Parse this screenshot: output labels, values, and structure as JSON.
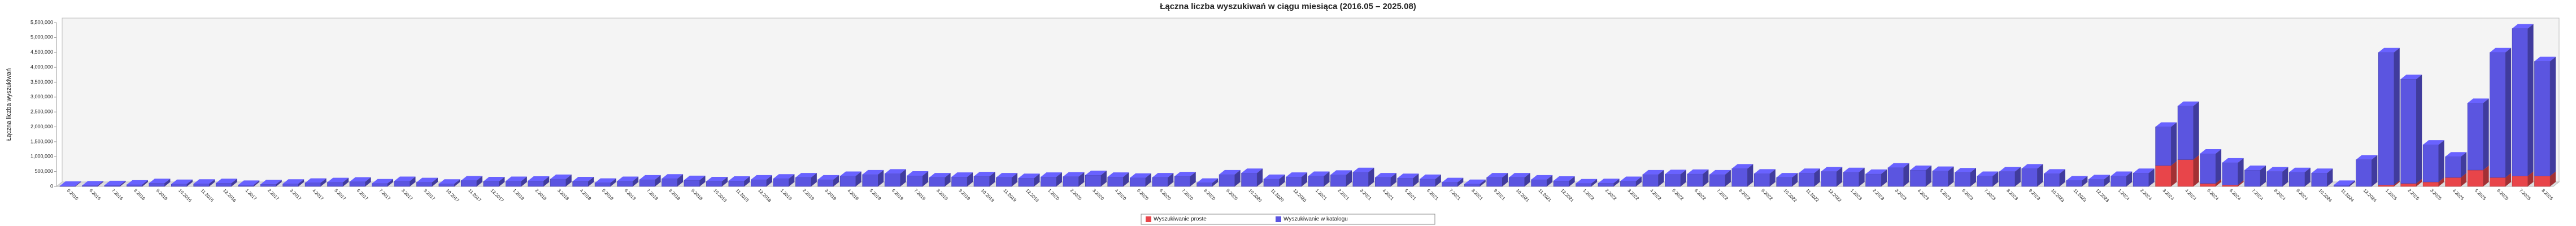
{
  "chart_data": {
    "type": "bar3d_stacked",
    "title": "Łączna liczba wyszukiwań w ciągu miesiąca (2016.05 – 2025.08)",
    "y_label": "Łączna liczba wyszukiwań",
    "categories": [
      "5.2016",
      "6.2016",
      "7.2016",
      "8.2016",
      "9.2016",
      "10.2016",
      "11.2016",
      "12.2016",
      "1.2017",
      "2.2017",
      "3.2017",
      "4.2017",
      "5.2017",
      "6.2017",
      "7.2017",
      "8.2017",
      "9.2017",
      "10.2017",
      "11.2017",
      "12.2017",
      "1.2018",
      "2.2018",
      "3.2018",
      "4.2018",
      "5.2018",
      "6.2018",
      "7.2018",
      "8.2018",
      "9.2018",
      "10.2018",
      "11.2018",
      "12.2018",
      "1.2019",
      "2.2019",
      "3.2019",
      "4.2019",
      "5.2019",
      "6.2019",
      "7.2019",
      "8.2019",
      "9.2019",
      "10.2019",
      "11.2019",
      "12.2019",
      "1.2020",
      "2.2020",
      "3.2020",
      "4.2020",
      "5.2020",
      "6.2020",
      "7.2020",
      "8.2020",
      "9.2020",
      "10.2020",
      "11.2020",
      "12.2020",
      "1.2021",
      "2.2021",
      "3.2021",
      "4.2021",
      "5.2021",
      "6.2021",
      "7.2021",
      "8.2021",
      "9.2021",
      "10.2021",
      "11.2021",
      "12.2021",
      "1.2022",
      "2.2022",
      "3.2022",
      "4.2022",
      "5.2022",
      "6.2022",
      "7.2022",
      "8.2022",
      "9.2022",
      "10.2022",
      "11.2022",
      "12.2022",
      "1.2023",
      "2.2023",
      "3.2023",
      "4.2023",
      "5.2023",
      "6.2023",
      "7.2023",
      "8.2023",
      "9.2023",
      "10.2023",
      "11.2023",
      "12.2023",
      "1.2024",
      "2.2024",
      "3.2024",
      "4.2024",
      "5.2024",
      "6.2024",
      "7.2024",
      "8.2024",
      "9.2024",
      "10.2024",
      "11.2024",
      "12.2024",
      "1.2025",
      "2.2025",
      "3.2025",
      "4.2025",
      "5.2025",
      "6.2025",
      "7.2025",
      "8.2025"
    ],
    "series": [
      {
        "name": "Wyszukiwanie proste",
        "color": "#e8454a",
        "values": [
          0,
          0,
          0,
          0,
          0,
          0,
          0,
          0,
          0,
          0,
          0,
          0,
          0,
          0,
          0,
          0,
          0,
          0,
          0,
          0,
          0,
          0,
          0,
          0,
          0,
          0,
          0,
          0,
          0,
          0,
          0,
          0,
          0,
          0,
          0,
          0,
          0,
          0,
          0,
          0,
          0,
          0,
          0,
          0,
          0,
          0,
          0,
          0,
          0,
          0,
          0,
          0,
          0,
          0,
          0,
          0,
          0,
          0,
          0,
          0,
          0,
          0,
          0,
          0,
          0,
          0,
          0,
          0,
          0,
          0,
          0,
          0,
          0,
          0,
          0,
          0,
          0,
          0,
          0,
          0,
          0,
          0,
          0,
          0,
          0,
          0,
          0,
          0,
          0,
          0,
          0,
          0,
          0,
          0,
          700000,
          900000,
          100000,
          50000,
          0,
          0,
          0,
          0,
          0,
          0,
          50000,
          100000,
          150000,
          300000,
          550000,
          300000,
          350000,
          350000
        ]
      },
      {
        "name": "Wyszukiwanie w katalogu",
        "color": "#5b55e0",
        "values": [
          20000,
          30000,
          40000,
          60000,
          110000,
          80000,
          90000,
          110000,
          50000,
          70000,
          90000,
          120000,
          140000,
          160000,
          100000,
          180000,
          140000,
          90000,
          200000,
          170000,
          180000,
          190000,
          250000,
          170000,
          120000,
          180000,
          230000,
          260000,
          210000,
          170000,
          190000,
          230000,
          260000,
          300000,
          230000,
          350000,
          400000,
          430000,
          360000,
          300000,
          320000,
          340000,
          300000,
          280000,
          320000,
          330000,
          380000,
          320000,
          290000,
          300000,
          340000,
          120000,
          400000,
          450000,
          250000,
          320000,
          350000,
          390000,
          480000,
          300000,
          280000,
          250000,
          140000,
          80000,
          300000,
          300000,
          230000,
          190000,
          100000,
          110000,
          180000,
          400000,
          410000,
          420000,
          400000,
          600000,
          430000,
          300000,
          450000,
          500000,
          480000,
          420000,
          630000,
          550000,
          520000,
          470000,
          350000,
          500000,
          600000,
          430000,
          200000,
          240000,
          350000,
          450000,
          1300000,
          1800000,
          1000000,
          750000,
          550000,
          500000,
          480000,
          450000,
          50000,
          900000,
          4450000,
          3500000,
          1250000,
          700000,
          2250000,
          4200000,
          4950000,
          3850000
        ]
      }
    ],
    "ylim": [
      0,
      5500000
    ],
    "yticks": [
      0,
      {
        "value": 500000,
        "label": "500,000"
      },
      {
        "value": 1000000,
        "label": "1,000,000"
      },
      {
        "value": 1500000,
        "label": "1,500,000"
      },
      {
        "value": 2000000,
        "label": "2,000,000"
      },
      {
        "value": 2500000,
        "label": "2,500,000"
      },
      {
        "value": 3000000,
        "label": "3,000,000"
      },
      {
        "value": 3500000,
        "label": "3,500,000"
      },
      {
        "value": 4000000,
        "label": "4,000,000"
      },
      {
        "value": 4500000,
        "label": "4,500,000"
      },
      {
        "value": 5000000,
        "label": "5,000,000"
      },
      {
        "value": 5500000,
        "label": "5,500,000"
      }
    ],
    "grid": false
  }
}
